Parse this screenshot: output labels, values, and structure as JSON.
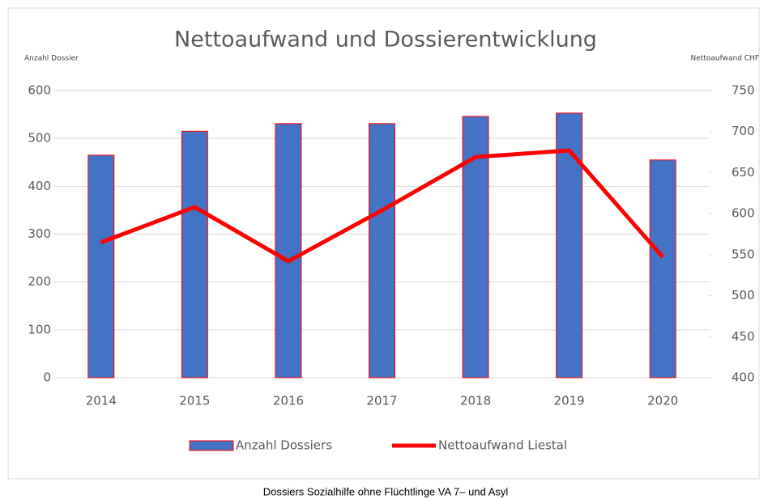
{
  "chart_data": {
    "type": "bar_line",
    "title": "Nettoaufwand und Dossierentwicklung",
    "y_label": "Anzahl Dossier",
    "y2_label": "Nettoaufwand CHF",
    "categories": [
      "2014",
      "2015",
      "2016",
      "2017",
      "2018",
      "2019",
      "2020"
    ],
    "series": [
      {
        "name": "Anzahl Dossiers",
        "type": "bar",
        "color": "#4472c4",
        "edge_color": "#ff0000",
        "values": [
          465,
          515,
          531,
          531,
          546,
          553,
          455
        ]
      },
      {
        "name": "Nettoaufwand Liestal",
        "type": "line",
        "axis": "y2",
        "color": "#ff0000",
        "values": [
          565,
          608,
          542,
          604,
          669,
          677,
          547
        ]
      }
    ],
    "ylim": [
      0,
      600
    ],
    "yticks": [
      0,
      100,
      200,
      300,
      400,
      500,
      600
    ],
    "y2lim": [
      400,
      750
    ],
    "y2ticks": [
      400,
      450,
      500,
      550,
      600,
      650,
      700,
      750
    ],
    "grid": true,
    "legend": "bottom",
    "caption": "Dossiers Sozialhilfe ohne Flüchtlinge VA 7– und Asyl"
  }
}
